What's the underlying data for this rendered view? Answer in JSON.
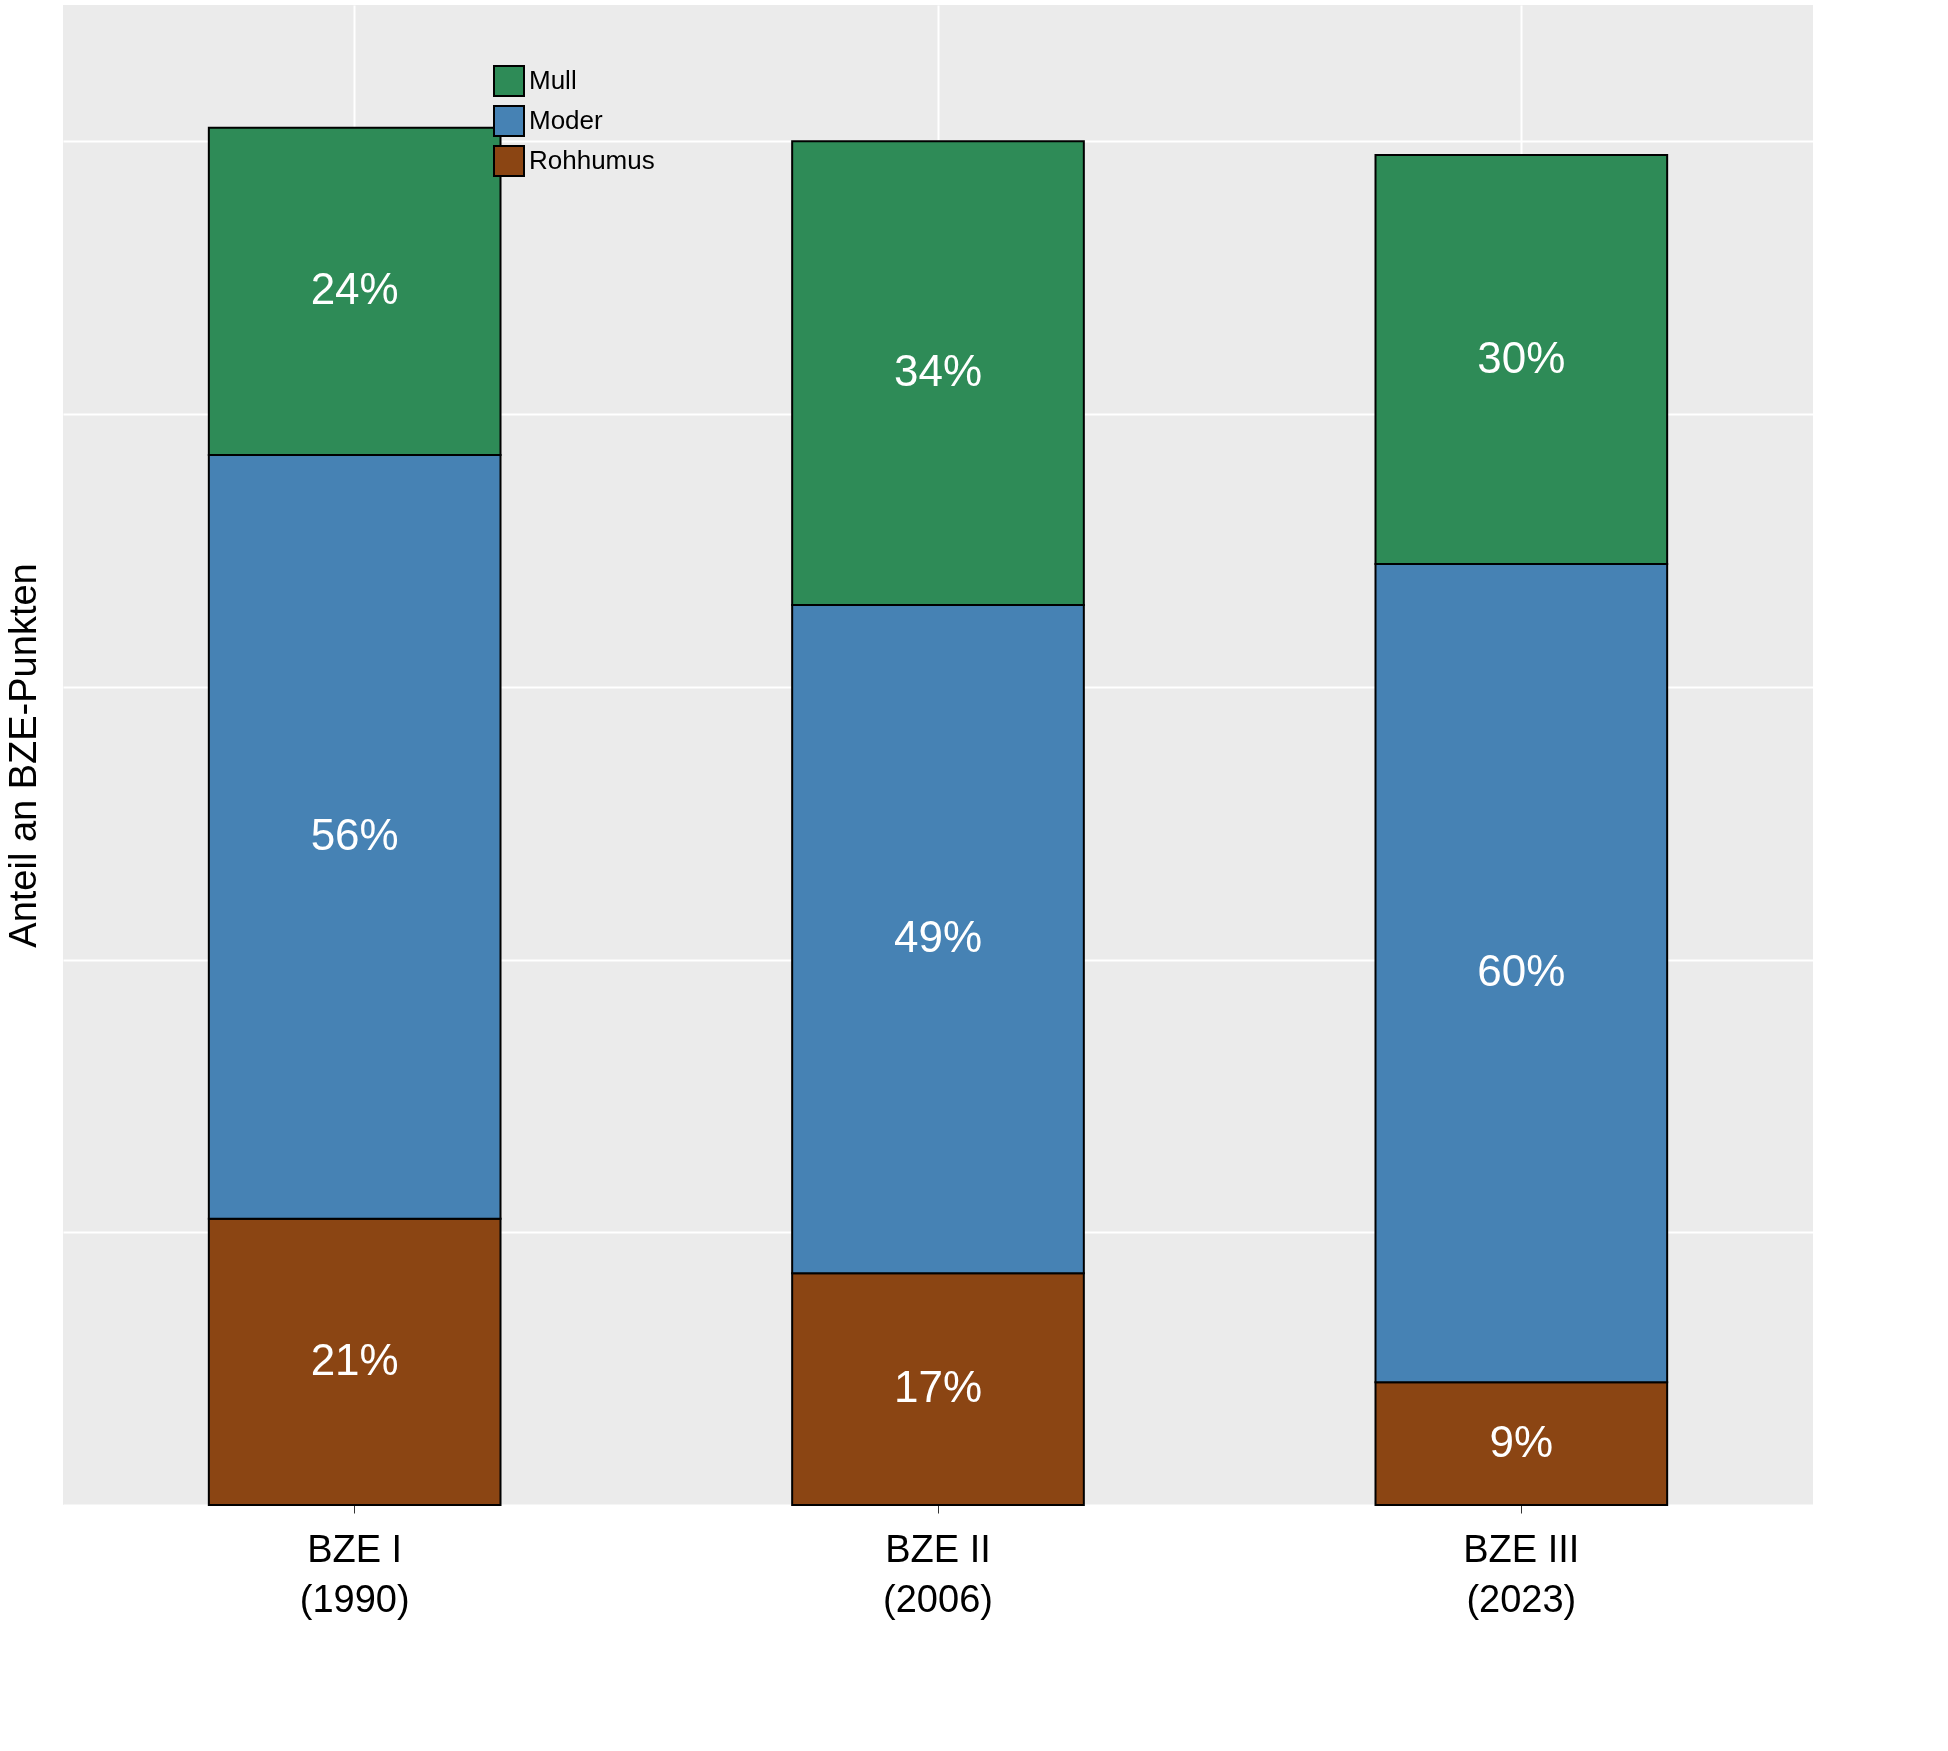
{
  "chart_data": {
    "type": "bar",
    "stacked": true,
    "ylabel": "Anteil an BZE-Punkten",
    "categories": [
      "BZE I\n(1990)",
      "BZE II\n(2006)",
      "BZE III\n(2023)"
    ],
    "series": [
      {
        "name": "Rohhumus",
        "color": "#8b4513",
        "values": [
          21,
          17,
          9
        ],
        "value_labels": [
          "21%",
          "17%",
          "9%"
        ]
      },
      {
        "name": "Moder",
        "color": "#4682b4",
        "values": [
          56,
          49,
          60
        ],
        "value_labels": [
          "56%",
          "49%",
          "60%"
        ]
      },
      {
        "name": "Mull",
        "color": "#2e8b57",
        "values": [
          24,
          34,
          30
        ],
        "value_labels": [
          "24%",
          "34%",
          "30%"
        ]
      }
    ],
    "tick_labels": "x",
    "grid": true,
    "legend": "top left"
  }
}
